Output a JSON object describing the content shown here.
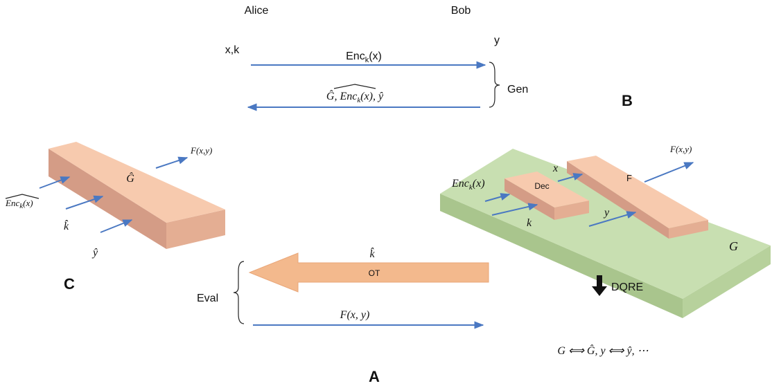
{
  "parties": {
    "alice": "Alice",
    "bob": "Bob"
  },
  "inputs": {
    "alice": "x,k",
    "bob": "y"
  },
  "messages": [
    {
      "label": [
        "Enc",
        "k",
        "(x)"
      ]
    },
    {
      "label": [
        "Ĝ, ",
        "Enc",
        "k",
        "(x)",
        ", ŷ"
      ]
    }
  ],
  "gen": "Gen",
  "panel_b": "B",
  "panel_c": {
    "label": "C",
    "box": "Ĝ",
    "output": "F(x,y)",
    "inputs": [
      [
        "Enc",
        "k",
        "(x)"
      ],
      "k̂",
      "ŷ"
    ]
  },
  "panel_a": {
    "label": "A",
    "ot": "OT",
    "ot_message": "k̂",
    "eval": "Eval",
    "output": "F(x, y)"
  },
  "circuit": {
    "board": "G",
    "dec": "Dec",
    "f": "F",
    "enc_input": [
      "Enc",
      "k",
      "(x)"
    ],
    "key": "k",
    "x": "x",
    "y": "y",
    "output": "F(x,y)"
  },
  "dqre": {
    "label": "DQRE",
    "relation": "G ⟺ Ĝ,  y ⟺ ŷ,  ⋯"
  }
}
